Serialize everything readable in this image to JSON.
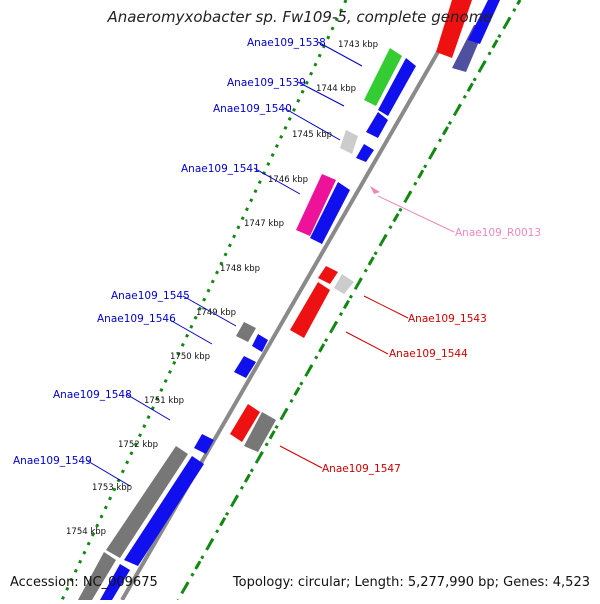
{
  "header": {
    "title": "Anaeromyxobacter sp. Fw109-5, complete genome"
  },
  "footer": {
    "accession": "Accession: NC_009675",
    "topology": "Topology: circular; Length: 5,277,990 bp; Genes: 4,523"
  },
  "colors": {
    "blue_gene": "#1010ee",
    "green_gene": "#33cc33",
    "magenta_gene": "#ee1199",
    "red_gene": "#ee1111",
    "gray_gene": "#777777",
    "lightgray_gene": "#cccccc",
    "purple_gene": "#5050a0",
    "rna_pink": "#ee88bb",
    "backbone": "#8a8a8a",
    "tick_green": "#118811",
    "label_blue": "#0000cc",
    "label_red": "#cc0000",
    "label_pink": "#ee88bb"
  },
  "ticks": [
    "1743 kbp",
    "1744 kbp",
    "1745 kbp",
    "1746 kbp",
    "1747 kbp",
    "1748 kbp",
    "1749 kbp",
    "1750 kbp",
    "1751 kbp",
    "1752 kbp",
    "1753 kbp",
    "1754 kbp"
  ],
  "genes_left": [
    "Anae109_1538",
    "Anae109_1539",
    "Anae109_1540",
    "Anae109_1541",
    "Anae109_1545",
    "Anae109_1546",
    "Anae109_1548",
    "Anae109_1549"
  ],
  "genes_right": [
    "Anae109_R0013",
    "Anae109_1543",
    "Anae109_1544",
    "Anae109_1547"
  ]
}
